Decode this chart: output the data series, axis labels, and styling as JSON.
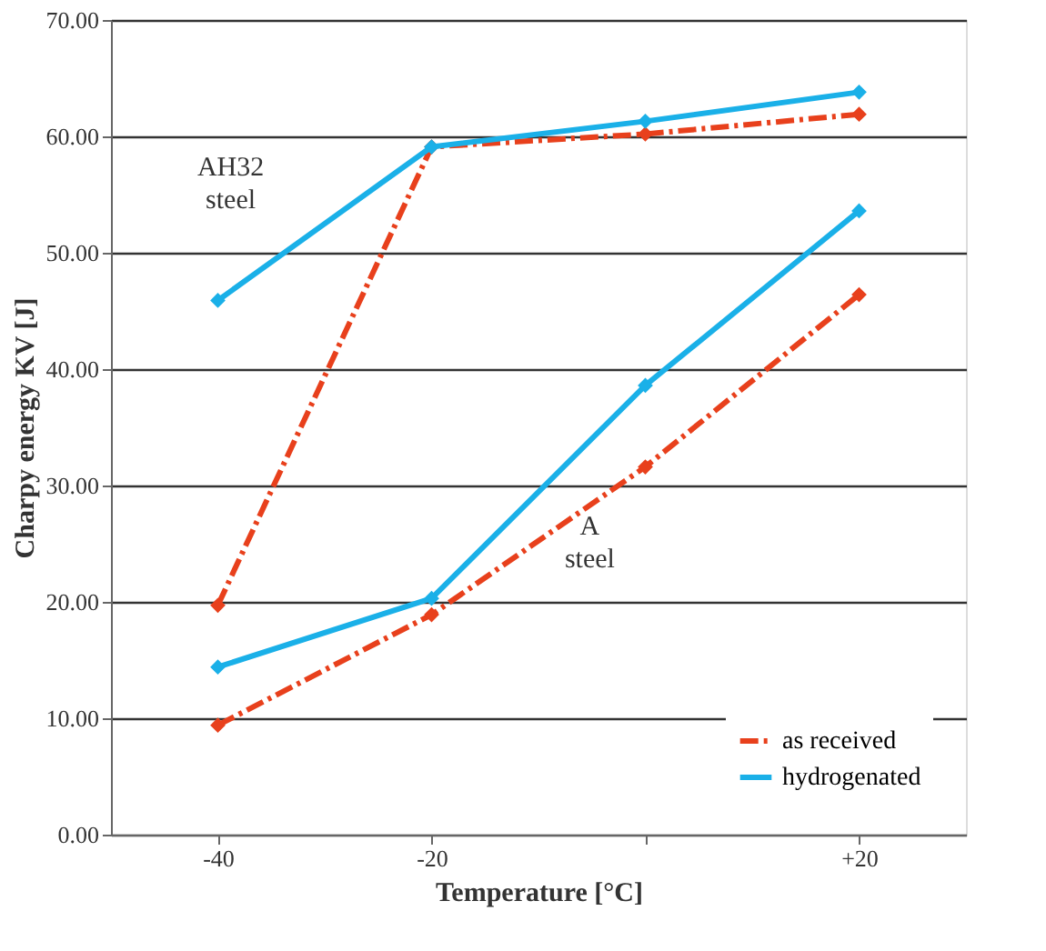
{
  "chart_data": {
    "type": "line",
    "xlabel": "Temperature [°C]",
    "ylabel": "Charpy energy KV [J]",
    "categories": [
      "-40",
      "-20",
      null,
      "+20"
    ],
    "series": [
      {
        "name": "as received",
        "color": "#e8401c",
        "line_style": "dashed",
        "values": [
          19.7,
          59.1,
          60.2,
          61.9
        ]
      },
      {
        "name": "hydrogenated",
        "color": "#1ab0e8",
        "line_style": "solid",
        "values": [
          45.9,
          59.1,
          61.3,
          63.8
        ]
      },
      {
        "color": "#e8401c",
        "line_style": "dashed",
        "values": [
          9.4,
          18.9,
          31.6,
          46.4
        ]
      },
      {
        "color": "#1ab0e8",
        "line_style": "solid",
        "values": [
          14.4,
          20.3,
          38.6,
          53.6
        ]
      }
    ],
    "ylim": [
      0,
      70
    ],
    "yticks": [
      {
        "value": 0,
        "label": "0.00"
      },
      {
        "value": 10,
        "label": "10.00"
      },
      {
        "value": 20,
        "label": "20.00"
      },
      {
        "value": 30,
        "label": "30.00"
      },
      {
        "value": 40,
        "label": "40.00"
      },
      {
        "value": 50,
        "label": "50.00"
      },
      {
        "value": 60,
        "label": "60.00"
      },
      {
        "value": 70,
        "label": "70.00"
      }
    ],
    "annotations": [
      "AH32\nsteel",
      "A\nsteel"
    ],
    "grid": "y",
    "legend": "bottom right",
    "marker": "diamond"
  }
}
